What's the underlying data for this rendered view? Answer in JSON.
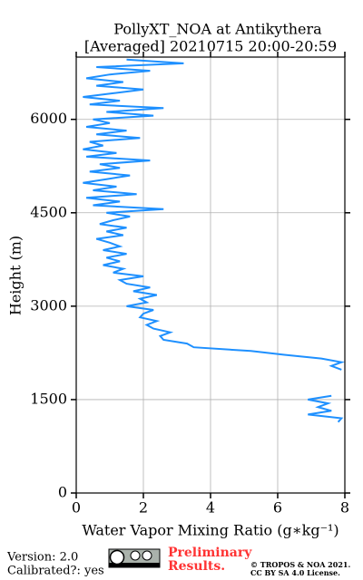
{
  "chart_data": {
    "type": "line",
    "title": "PollyXT_NOA at Antikythera",
    "subtitle": "[Averaged] 20210715 20:00-20:59",
    "x_label": "Water Vapor Mixing Ratio (g∗kg⁻¹)",
    "y_label": "Height (m)",
    "xlim": [
      0,
      8
    ],
    "xticks": [
      0,
      2,
      4,
      6,
      8
    ],
    "ylim": [
      0,
      7000
    ],
    "yticks": [
      0,
      1500,
      3000,
      4500,
      6000
    ],
    "grid": true,
    "y": [
      1140,
      1200,
      1260,
      1320,
      1380,
      1440,
      1500,
      1560,
      1620,
      1680,
      1740,
      1800,
      1860,
      1920,
      1980,
      2040,
      2100,
      2160,
      2220,
      2280,
      2340,
      2400,
      2460,
      2520,
      2580,
      2640,
      2700,
      2760,
      2820,
      2880,
      2940,
      3000,
      3060,
      3120,
      3180,
      3240,
      3300,
      3360,
      3420,
      3480,
      3540,
      3600,
      3660,
      3720,
      3780,
      3840,
      3900,
      3960,
      4020,
      4080,
      4140,
      4200,
      4260,
      4320,
      4380,
      4440,
      4500,
      4560,
      4620,
      4680,
      4740,
      4800,
      4860,
      4920,
      4980,
      5040,
      5100,
      5160,
      5220,
      5280,
      5340,
      5400,
      5460,
      5520,
      5580,
      5640,
      5700,
      5760,
      5820,
      5880,
      5940,
      6000,
      6060,
      6120,
      6180,
      6240,
      6300,
      6360,
      6420,
      6480,
      6540,
      6600,
      6660,
      6720,
      6780,
      6840,
      6900,
      6960
    ],
    "series": [
      {
        "color": "#1e90ff",
        "values": [
          7.8,
          7.9,
          6.9,
          7.6,
          7.2,
          7.5,
          6.9,
          7.6,
          null,
          null,
          null,
          null,
          null,
          null,
          7.9,
          7.6,
          7.9,
          7.3,
          6.2,
          5.2,
          3.5,
          3.3,
          2.6,
          2.5,
          2.8,
          2.3,
          2.1,
          2.4,
          1.9,
          2.0,
          2.3,
          1.5,
          2.1,
          1.9,
          2.4,
          1.7,
          2.2,
          1.5,
          1.3,
          2.0,
          1.1,
          1.4,
          0.8,
          1.3,
          0.9,
          1.5,
          0.8,
          1.3,
          1.0,
          0.6,
          1.4,
          0.9,
          1.5,
          0.7,
          1.1,
          1.6,
          0.9,
          2.6,
          0.5,
          1.3,
          0.3,
          1.8,
          0.5,
          1.2,
          0.2,
          0.9,
          1.6,
          0.4,
          1.3,
          0.7,
          2.2,
          0.3,
          1.2,
          0.2,
          0.8,
          0.4,
          1.9,
          0.6,
          1.5,
          0.3,
          1.0,
          0.5,
          2.3,
          0.9,
          2.6,
          0.4,
          1.3,
          0.2,
          1.1,
          2.0,
          0.6,
          1.4,
          0.3,
          1.0,
          2.2,
          0.6,
          3.2,
          1.5
        ]
      }
    ]
  },
  "footer": {
    "version": "Version: 2.0",
    "calibrated": "Calibrated?: yes",
    "preliminary": [
      "Preliminary",
      "Results."
    ],
    "copyright": "© TROPOS & NOA 2021.",
    "license": "CC BY SA 4.0 License."
  }
}
